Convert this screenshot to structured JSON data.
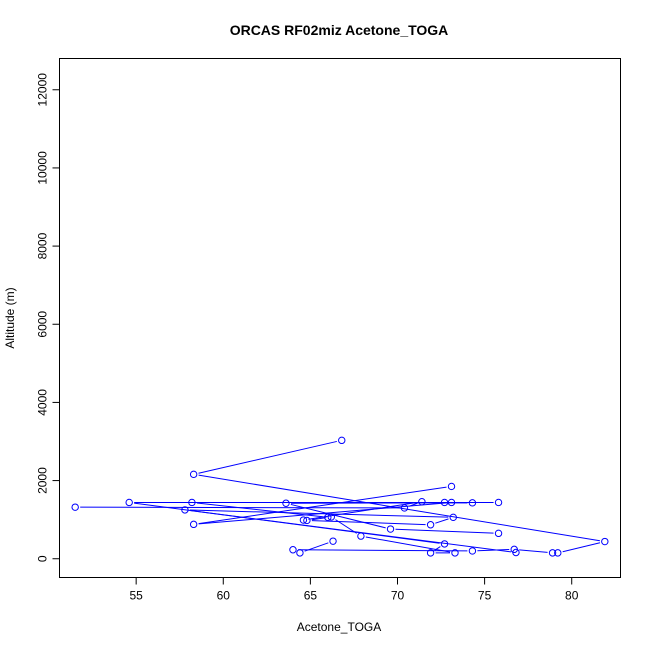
{
  "chart_data": {
    "type": "scatter",
    "title": "ORCAS RF02miz Acetone_TOGA",
    "xlabel": "Acetone_TOGA",
    "ylabel": "Altitude (m)",
    "xlim": [
      50.6,
      82.8
    ],
    "ylim": [
      -480,
      12800
    ],
    "x_ticks": [
      55,
      60,
      65,
      70,
      75,
      80
    ],
    "y_ticks": [
      0,
      2000,
      4000,
      6000,
      8000,
      10000,
      12000
    ],
    "grid": false,
    "legend": "none",
    "connected": true,
    "series_color": "#0000ff",
    "series": [
      {
        "x": [
          66.8,
          58.3,
          81.9,
          79.2,
          78.9,
          76.7,
          74.3,
          64.0,
          64.4,
          66.3
        ],
        "y": [
          3030,
          2160,
          440,
          150,
          150,
          240,
          200,
          230,
          150,
          450
        ]
      },
      {
        "x": [
          73.1,
          58.3,
          73.1,
          75.8,
          58.2,
          66.0
        ],
        "y": [
          1850,
          880,
          1440,
          1440,
          1440,
          1060
        ]
      },
      {
        "x": [
          75.8,
          69.6,
          63.6,
          74.3,
          72.7,
          54.6,
          72.7,
          71.9,
          73.3,
          67.9,
          66.2,
          64.8,
          71.9,
          73.2,
          57.8,
          76.8
        ],
        "y": [
          650,
          760,
          1420,
          1430,
          1440,
          1440,
          380,
          150,
          150,
          580,
          1070,
          980,
          870,
          1060,
          1250,
          160
        ]
      },
      {
        "x": [
          51.5,
          70.4,
          71.4,
          64.6
        ],
        "y": [
          1320,
          1300,
          1460,
          990
        ]
      }
    ]
  }
}
